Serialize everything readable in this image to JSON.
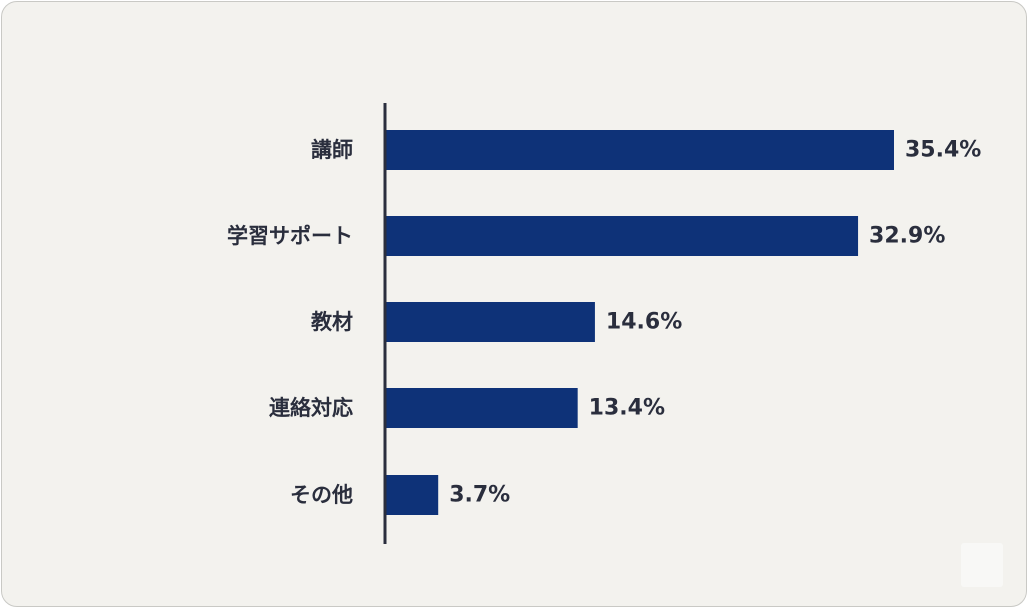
{
  "chart_data": {
    "type": "bar",
    "orientation": "horizontal",
    "categories": [
      "講師",
      "学習サポート",
      "教材",
      "連絡対応",
      "その他"
    ],
    "values": [
      35.4,
      32.9,
      14.6,
      13.4,
      3.7
    ],
    "value_labels": [
      "35.4%",
      "32.9%",
      "14.6%",
      "13.4%",
      "3.7%"
    ],
    "title": "",
    "xlabel": "",
    "ylabel": "",
    "xlim": [
      0,
      35.4
    ],
    "grid": false,
    "legend": "none",
    "colors": {
      "bar": "#0e3278",
      "axis": "#2a2e3d",
      "text": "#2a2e3d",
      "background": "#f3f2ee"
    }
  }
}
